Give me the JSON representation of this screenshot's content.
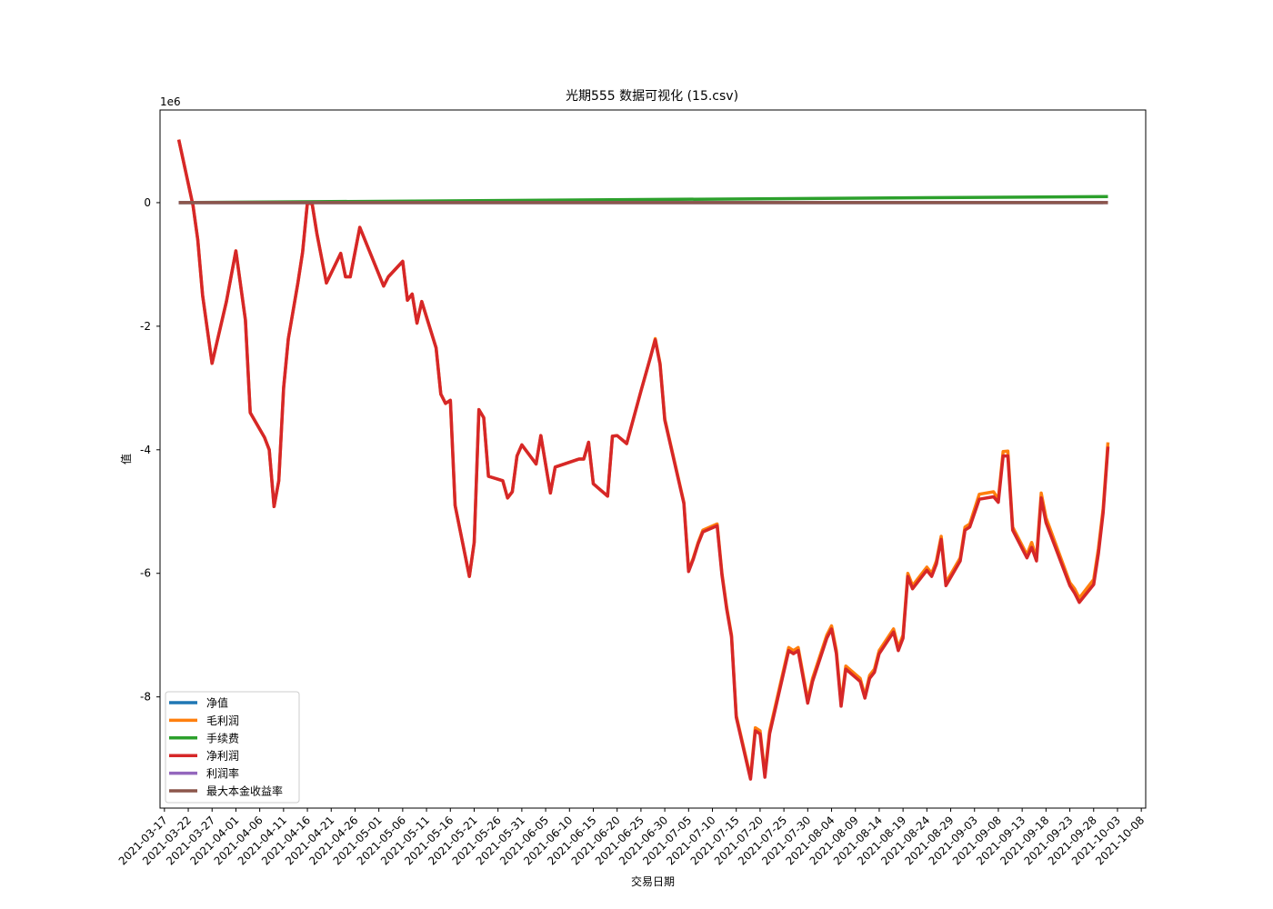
{
  "chart_data": {
    "type": "line",
    "title": "光期555 数据可视化 (15.csv)",
    "xlabel": "交易日期",
    "ylabel": "值",
    "y_scale_label": "1e6",
    "y_ticks": [
      0,
      -2,
      -4,
      -6,
      -8
    ],
    "ylim": [
      -9.8,
      1.5
    ],
    "x_ticks": [
      "2021-03-17",
      "2021-03-22",
      "2021-03-27",
      "2021-04-01",
      "2021-04-06",
      "2021-04-11",
      "2021-04-16",
      "2021-04-21",
      "2021-04-26",
      "2021-05-01",
      "2021-05-06",
      "2021-05-11",
      "2021-05-16",
      "2021-05-21",
      "2021-05-26",
      "2021-05-31",
      "2021-06-05",
      "2021-06-10",
      "2021-06-15",
      "2021-06-20",
      "2021-06-25",
      "2021-06-30",
      "2021-07-05",
      "2021-07-10",
      "2021-07-15",
      "2021-07-20",
      "2021-07-25",
      "2021-07-30",
      "2021-08-04",
      "2021-08-09",
      "2021-08-14",
      "2021-08-19",
      "2021-08-24",
      "2021-08-29",
      "2021-09-03",
      "2021-09-08",
      "2021-09-13",
      "2021-09-18",
      "2021-09-23",
      "2021-09-28",
      "2021-10-03",
      "2021-10-08"
    ],
    "xlim": [
      "2021-03-17",
      "2021-10-08"
    ],
    "grid": false,
    "legend_position": "lower-left",
    "series": [
      {
        "name": "净值",
        "color": "#1f77b4",
        "values": [
          [
            "2021-03-20",
            0
          ],
          [
            "2021-09-30",
            0
          ]
        ]
      },
      {
        "name": "毛利润",
        "color": "#ff7f0e",
        "values": [
          [
            "2021-03-20",
            1.02
          ],
          [
            "2021-03-23",
            -0.05
          ],
          [
            "2021-03-24",
            -0.6
          ],
          [
            "2021-03-25",
            -1.5
          ],
          [
            "2021-03-27",
            -2.6
          ],
          [
            "2021-03-30",
            -1.6
          ],
          [
            "2021-04-01",
            -0.78
          ],
          [
            "2021-04-03",
            -1.9
          ],
          [
            "2021-04-04",
            -3.4
          ],
          [
            "2021-04-07",
            -3.8
          ],
          [
            "2021-04-08",
            -4.0
          ],
          [
            "2021-04-09",
            -4.92
          ],
          [
            "2021-04-10",
            -4.5
          ],
          [
            "2021-04-11",
            -3.0
          ],
          [
            "2021-04-12",
            -2.2
          ],
          [
            "2021-04-14",
            -1.3
          ],
          [
            "2021-04-15",
            -0.8
          ],
          [
            "2021-04-16",
            0.0
          ],
          [
            "2021-04-17",
            -0.02
          ],
          [
            "2021-04-18",
            -0.5
          ],
          [
            "2021-04-20",
            -1.3
          ],
          [
            "2021-04-23",
            -0.82
          ],
          [
            "2021-04-24",
            -1.2
          ],
          [
            "2021-04-25",
            -1.2
          ],
          [
            "2021-04-27",
            -0.4
          ],
          [
            "2021-05-02",
            -1.35
          ],
          [
            "2021-05-03",
            -1.2
          ],
          [
            "2021-05-06",
            -0.95
          ],
          [
            "2021-05-07",
            -1.58
          ],
          [
            "2021-05-08",
            -1.48
          ],
          [
            "2021-05-09",
            -1.95
          ],
          [
            "2021-05-10",
            -1.6
          ],
          [
            "2021-05-13",
            -2.35
          ],
          [
            "2021-05-14",
            -3.1
          ],
          [
            "2021-05-15",
            -3.25
          ],
          [
            "2021-05-16",
            -3.2
          ],
          [
            "2021-05-17",
            -4.9
          ],
          [
            "2021-05-20",
            -6.05
          ],
          [
            "2021-05-21",
            -5.5
          ],
          [
            "2021-05-22",
            -3.35
          ],
          [
            "2021-05-23",
            -3.48
          ],
          [
            "2021-05-24",
            -4.43
          ],
          [
            "2021-05-27",
            -4.5
          ],
          [
            "2021-05-28",
            -4.78
          ],
          [
            "2021-05-29",
            -4.68
          ],
          [
            "2021-05-30",
            -4.1
          ],
          [
            "2021-05-31",
            -3.92
          ],
          [
            "2021-06-03",
            -4.23
          ],
          [
            "2021-06-04",
            -3.77
          ],
          [
            "2021-06-06",
            -4.7
          ],
          [
            "2021-06-07",
            -4.28
          ],
          [
            "2021-06-12",
            -4.15
          ],
          [
            "2021-06-13",
            -4.15
          ],
          [
            "2021-06-14",
            -3.88
          ],
          [
            "2021-06-15",
            -4.55
          ],
          [
            "2021-06-18",
            -4.75
          ],
          [
            "2021-06-19",
            -3.78
          ],
          [
            "2021-06-20",
            -3.77
          ],
          [
            "2021-06-22",
            -3.9
          ],
          [
            "2021-06-25",
            -3.05
          ],
          [
            "2021-06-27",
            -2.5
          ],
          [
            "2021-06-28",
            -2.2
          ],
          [
            "2021-06-29",
            -2.6
          ],
          [
            "2021-06-30",
            -3.5
          ],
          [
            "2021-07-04",
            -4.85
          ],
          [
            "2021-07-05",
            -5.95
          ],
          [
            "2021-07-06",
            -5.75
          ],
          [
            "2021-07-07",
            -5.5
          ],
          [
            "2021-07-08",
            -5.3
          ],
          [
            "2021-07-11",
            -5.2
          ],
          [
            "2021-07-12",
            -6.0
          ],
          [
            "2021-07-13",
            -6.55
          ],
          [
            "2021-07-14",
            -7.0
          ],
          [
            "2021-07-15",
            -8.3
          ],
          [
            "2021-07-18",
            -9.3
          ],
          [
            "2021-07-19",
            -8.5
          ],
          [
            "2021-07-20",
            -8.55
          ],
          [
            "2021-07-21",
            -9.25
          ],
          [
            "2021-07-22",
            -8.55
          ],
          [
            "2021-07-26",
            -7.2
          ],
          [
            "2021-07-27",
            -7.25
          ],
          [
            "2021-07-28",
            -7.2
          ],
          [
            "2021-07-30",
            -8.05
          ],
          [
            "2021-07-31",
            -7.7
          ],
          [
            "2021-08-03",
            -7.0
          ],
          [
            "2021-08-04",
            -6.85
          ],
          [
            "2021-08-05",
            -7.25
          ],
          [
            "2021-08-06",
            -8.1
          ],
          [
            "2021-08-07",
            -7.5
          ],
          [
            "2021-08-10",
            -7.7
          ],
          [
            "2021-08-11",
            -7.98
          ],
          [
            "2021-08-12",
            -7.65
          ],
          [
            "2021-08-13",
            -7.55
          ],
          [
            "2021-08-14",
            -7.25
          ],
          [
            "2021-08-17",
            -6.9
          ],
          [
            "2021-08-18",
            -7.2
          ],
          [
            "2021-08-19",
            -7.0
          ],
          [
            "2021-08-20",
            -6.0
          ],
          [
            "2021-08-21",
            -6.2
          ],
          [
            "2021-08-24",
            -5.9
          ],
          [
            "2021-08-25",
            -6.0
          ],
          [
            "2021-08-26",
            -5.8
          ],
          [
            "2021-08-27",
            -5.4
          ],
          [
            "2021-08-28",
            -6.15
          ],
          [
            "2021-08-31",
            -5.75
          ],
          [
            "2021-09-01",
            -5.25
          ],
          [
            "2021-09-02",
            -5.2
          ],
          [
            "2021-09-04",
            -4.72
          ],
          [
            "2021-09-07",
            -4.68
          ],
          [
            "2021-09-08",
            -4.8
          ],
          [
            "2021-09-09",
            -4.03
          ],
          [
            "2021-09-10",
            -4.02
          ],
          [
            "2021-09-11",
            -5.25
          ],
          [
            "2021-09-14",
            -5.7
          ],
          [
            "2021-09-15",
            -5.5
          ],
          [
            "2021-09-16",
            -5.75
          ],
          [
            "2021-09-17",
            -4.7
          ],
          [
            "2021-09-18",
            -5.1
          ],
          [
            "2021-09-23",
            -6.15
          ],
          [
            "2021-09-24",
            -6.25
          ],
          [
            "2021-09-25",
            -6.4
          ],
          [
            "2021-09-28",
            -6.1
          ],
          [
            "2021-09-29",
            -5.6
          ],
          [
            "2021-09-30",
            -4.95
          ],
          [
            "2021-10-01",
            -3.88
          ]
        ]
      },
      {
        "name": "手续费",
        "color": "#2ca02c",
        "values": [
          [
            "2021-03-20",
            0.0
          ],
          [
            "2021-10-01",
            0.1
          ]
        ]
      },
      {
        "name": "净利润",
        "color": "#d62728",
        "values": [
          [
            "2021-03-20",
            1.02
          ],
          [
            "2021-03-23",
            -0.05
          ],
          [
            "2021-03-24",
            -0.6
          ],
          [
            "2021-03-25",
            -1.5
          ],
          [
            "2021-03-27",
            -2.6
          ],
          [
            "2021-03-30",
            -1.6
          ],
          [
            "2021-04-01",
            -0.78
          ],
          [
            "2021-04-03",
            -1.9
          ],
          [
            "2021-04-04",
            -3.4
          ],
          [
            "2021-04-07",
            -3.8
          ],
          [
            "2021-04-08",
            -4.0
          ],
          [
            "2021-04-09",
            -4.92
          ],
          [
            "2021-04-10",
            -4.5
          ],
          [
            "2021-04-11",
            -3.0
          ],
          [
            "2021-04-12",
            -2.2
          ],
          [
            "2021-04-14",
            -1.3
          ],
          [
            "2021-04-15",
            -0.8
          ],
          [
            "2021-04-16",
            0.0
          ],
          [
            "2021-04-17",
            -0.02
          ],
          [
            "2021-04-18",
            -0.5
          ],
          [
            "2021-04-20",
            -1.3
          ],
          [
            "2021-04-23",
            -0.82
          ],
          [
            "2021-04-24",
            -1.2
          ],
          [
            "2021-04-25",
            -1.2
          ],
          [
            "2021-04-27",
            -0.4
          ],
          [
            "2021-05-02",
            -1.35
          ],
          [
            "2021-05-03",
            -1.2
          ],
          [
            "2021-05-06",
            -0.95
          ],
          [
            "2021-05-07",
            -1.58
          ],
          [
            "2021-05-08",
            -1.48
          ],
          [
            "2021-05-09",
            -1.95
          ],
          [
            "2021-05-10",
            -1.6
          ],
          [
            "2021-05-13",
            -2.35
          ],
          [
            "2021-05-14",
            -3.1
          ],
          [
            "2021-05-15",
            -3.25
          ],
          [
            "2021-05-16",
            -3.2
          ],
          [
            "2021-05-17",
            -4.9
          ],
          [
            "2021-05-20",
            -6.05
          ],
          [
            "2021-05-21",
            -5.5
          ],
          [
            "2021-05-22",
            -3.35
          ],
          [
            "2021-05-23",
            -3.48
          ],
          [
            "2021-05-24",
            -4.43
          ],
          [
            "2021-05-27",
            -4.5
          ],
          [
            "2021-05-28",
            -4.78
          ],
          [
            "2021-05-29",
            -4.68
          ],
          [
            "2021-05-30",
            -4.1
          ],
          [
            "2021-05-31",
            -3.92
          ],
          [
            "2021-06-03",
            -4.23
          ],
          [
            "2021-06-04",
            -3.77
          ],
          [
            "2021-06-06",
            -4.7
          ],
          [
            "2021-06-07",
            -4.28
          ],
          [
            "2021-06-12",
            -4.15
          ],
          [
            "2021-06-13",
            -4.15
          ],
          [
            "2021-06-14",
            -3.88
          ],
          [
            "2021-06-15",
            -4.55
          ],
          [
            "2021-06-18",
            -4.75
          ],
          [
            "2021-06-19",
            -3.78
          ],
          [
            "2021-06-20",
            -3.77
          ],
          [
            "2021-06-22",
            -3.9
          ],
          [
            "2021-06-25",
            -3.05
          ],
          [
            "2021-06-27",
            -2.5
          ],
          [
            "2021-06-28",
            -2.22
          ],
          [
            "2021-06-29",
            -2.62
          ],
          [
            "2021-06-30",
            -3.52
          ],
          [
            "2021-07-04",
            -4.87
          ],
          [
            "2021-07-05",
            -5.97
          ],
          [
            "2021-07-06",
            -5.77
          ],
          [
            "2021-07-07",
            -5.52
          ],
          [
            "2021-07-08",
            -5.33
          ],
          [
            "2021-07-11",
            -5.23
          ],
          [
            "2021-07-12",
            -6.03
          ],
          [
            "2021-07-13",
            -6.58
          ],
          [
            "2021-07-14",
            -7.03
          ],
          [
            "2021-07-15",
            -8.33
          ],
          [
            "2021-07-18",
            -9.33
          ],
          [
            "2021-07-19",
            -8.55
          ],
          [
            "2021-07-20",
            -8.6
          ],
          [
            "2021-07-21",
            -9.3
          ],
          [
            "2021-07-22",
            -8.6
          ],
          [
            "2021-07-26",
            -7.25
          ],
          [
            "2021-07-27",
            -7.3
          ],
          [
            "2021-07-28",
            -7.25
          ],
          [
            "2021-07-30",
            -8.1
          ],
          [
            "2021-07-31",
            -7.75
          ],
          [
            "2021-08-03",
            -7.05
          ],
          [
            "2021-08-04",
            -6.9
          ],
          [
            "2021-08-05",
            -7.3
          ],
          [
            "2021-08-06",
            -8.15
          ],
          [
            "2021-08-07",
            -7.55
          ],
          [
            "2021-08-10",
            -7.75
          ],
          [
            "2021-08-11",
            -8.02
          ],
          [
            "2021-08-12",
            -7.7
          ],
          [
            "2021-08-13",
            -7.6
          ],
          [
            "2021-08-14",
            -7.3
          ],
          [
            "2021-08-17",
            -6.95
          ],
          [
            "2021-08-18",
            -7.25
          ],
          [
            "2021-08-19",
            -7.05
          ],
          [
            "2021-08-20",
            -6.05
          ],
          [
            "2021-08-21",
            -6.25
          ],
          [
            "2021-08-24",
            -5.95
          ],
          [
            "2021-08-25",
            -6.05
          ],
          [
            "2021-08-26",
            -5.85
          ],
          [
            "2021-08-27",
            -5.45
          ],
          [
            "2021-08-28",
            -6.2
          ],
          [
            "2021-08-31",
            -5.8
          ],
          [
            "2021-09-01",
            -5.3
          ],
          [
            "2021-09-02",
            -5.25
          ],
          [
            "2021-09-04",
            -4.8
          ],
          [
            "2021-09-07",
            -4.76
          ],
          [
            "2021-09-08",
            -4.85
          ],
          [
            "2021-09-09",
            -4.1
          ],
          [
            "2021-09-10",
            -4.1
          ],
          [
            "2021-09-11",
            -5.3
          ],
          [
            "2021-09-14",
            -5.75
          ],
          [
            "2021-09-15",
            -5.58
          ],
          [
            "2021-09-16",
            -5.8
          ],
          [
            "2021-09-17",
            -4.78
          ],
          [
            "2021-09-18",
            -5.18
          ],
          [
            "2021-09-23",
            -6.2
          ],
          [
            "2021-09-24",
            -6.32
          ],
          [
            "2021-09-25",
            -6.47
          ],
          [
            "2021-09-28",
            -6.18
          ],
          [
            "2021-09-29",
            -5.68
          ],
          [
            "2021-09-30",
            -5.02
          ],
          [
            "2021-10-01",
            -3.95
          ]
        ]
      },
      {
        "name": "利润率",
        "color": "#9467bd",
        "values": [
          [
            "2021-03-20",
            0
          ],
          [
            "2021-10-01",
            0
          ]
        ]
      },
      {
        "name": "最大本金收益率",
        "color": "#8c564b",
        "values": [
          [
            "2021-03-20",
            0
          ],
          [
            "2021-10-01",
            0
          ]
        ]
      }
    ]
  }
}
